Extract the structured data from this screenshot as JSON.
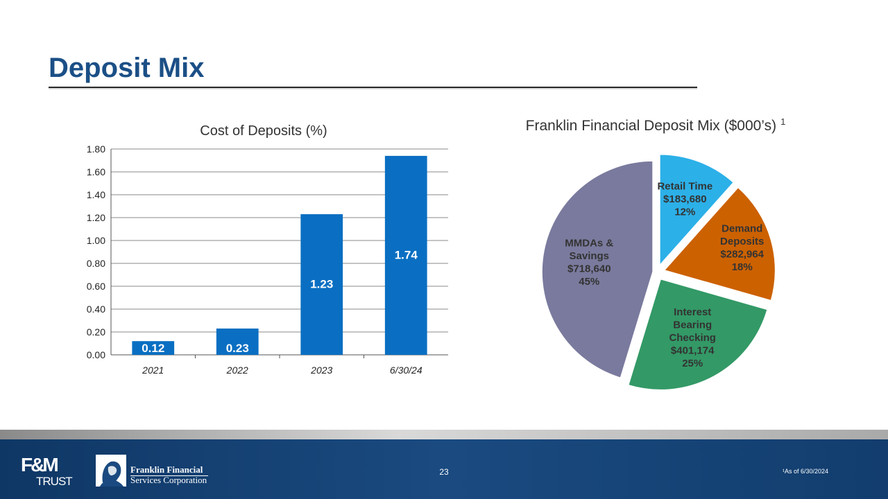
{
  "slide": {
    "title": "Deposit Mix",
    "page_number": "23",
    "footnote": "¹As of 6/30/2024"
  },
  "footer": {
    "logo_fm_line1": "F&M",
    "logo_fm_line2": "TRUST",
    "company_line1": "Franklin Financial",
    "company_line2": "Services Corporation"
  },
  "colors": {
    "title": "#1b4f86",
    "bar": "#0a6fc2",
    "footer": "#1a4a80"
  },
  "chart_data": [
    {
      "type": "bar",
      "title": "Cost of Deposits (%)",
      "categories": [
        "2021",
        "2022",
        "2023",
        "6/30/24"
      ],
      "values": [
        0.12,
        0.23,
        1.23,
        1.74
      ],
      "value_labels": [
        "0.12",
        "0.23",
        "1.23",
        "1.74"
      ],
      "ylim": [
        0,
        1.8
      ],
      "yticks": [
        "0.00",
        "0.20",
        "0.40",
        "0.60",
        "0.80",
        "1.00",
        "1.20",
        "1.40",
        "1.60",
        "1.80"
      ],
      "grid": true,
      "color": "#0a6fc2"
    },
    {
      "type": "pie",
      "title": "Franklin Financial Deposit Mix ($000’s)",
      "title_superscript": "1",
      "slices": [
        {
          "name": "Retail Time",
          "value": 183680,
          "amount": "$183,680",
          "percent": "12%",
          "color": "#2cb0e8"
        },
        {
          "name": "Demand Deposits",
          "value": 282964,
          "amount": "$282,964",
          "percent": "18%",
          "color": "#cc6100"
        },
        {
          "name": "Interest Bearing Checking",
          "value": 401174,
          "amount": "$401,174",
          "percent": "25%",
          "color": "#339966"
        },
        {
          "name": "MMDAs & Savings",
          "value": 718640,
          "amount": "$718,640",
          "percent": "45%",
          "color": "#7a7a9e"
        }
      ],
      "label_lines": [
        [
          "Retail Time",
          "$183,680",
          "12%"
        ],
        [
          "Demand",
          "Deposits",
          "$282,964",
          "18%"
        ],
        [
          "Interest",
          "Bearing",
          "Checking",
          "$401,174",
          "25%"
        ],
        [
          "MMDAs &",
          "Savings",
          "$718,640",
          "45%"
        ]
      ]
    }
  ]
}
